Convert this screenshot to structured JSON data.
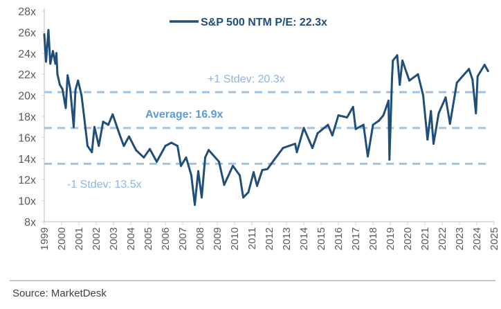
{
  "chart_data": {
    "type": "line",
    "title": "",
    "xlabel": "",
    "ylabel": "",
    "legend": {
      "entry": "S&P 500 NTM P/E: 22.3x",
      "placement": "top-center"
    },
    "xlim": [
      1999,
      2025
    ],
    "x_ticks": [
      "1999",
      "2000",
      "2001",
      "2002",
      "2003",
      "2004",
      "2005",
      "2006",
      "2007",
      "2008",
      "2009",
      "2010",
      "2011",
      "2012",
      "2013",
      "2014",
      "2015",
      "2016",
      "2017",
      "2018",
      "2019",
      "2020",
      "2021",
      "2022",
      "2023",
      "2024",
      "2025"
    ],
    "ylim": [
      8,
      28
    ],
    "y_ticks": [
      "8x",
      "10x",
      "12x",
      "14x",
      "16x",
      "18x",
      "20x",
      "22x",
      "24x",
      "26x",
      "28x"
    ],
    "grid": false,
    "reference_lines": [
      {
        "label": "+1 Stdev: 20.3x",
        "value": 20.3,
        "bold": false
      },
      {
        "label": "Average: 16.9x",
        "value": 16.9,
        "bold": true
      },
      {
        "label": "-1 Stdev: 13.5x",
        "value": 13.5,
        "bold": false
      }
    ],
    "series": [
      {
        "name": "S&P 500 NTM P/E: 22.3x",
        "x": [
          1999.0,
          1999.1,
          1999.24,
          1999.35,
          1999.5,
          1999.64,
          1999.7,
          1999.76,
          1999.9,
          2000.05,
          2000.24,
          2000.35,
          2000.5,
          2000.7,
          2000.8,
          2000.95,
          2001.15,
          2001.3,
          2001.5,
          2001.75,
          2001.9,
          2002.15,
          2002.4,
          2002.7,
          2002.95,
          2003.35,
          2003.6,
          2003.9,
          2004.3,
          2004.75,
          2005.1,
          2005.5,
          2006.0,
          2006.35,
          2006.7,
          2006.9,
          2007.2,
          2007.5,
          2007.7,
          2007.9,
          2008.1,
          2008.3,
          2008.5,
          2009.1,
          2009.4,
          2009.9,
          2010.3,
          2010.5,
          2010.8,
          2011.1,
          2011.3,
          2011.6,
          2011.9,
          2012.3,
          2012.8,
          2013.5,
          2013.6,
          2014.0,
          2014.5,
          2014.8,
          2015.4,
          2015.65,
          2016.0,
          2016.5,
          2016.85,
          2017.0,
          2017.45,
          2017.7,
          2018.0,
          2018.35,
          2018.6,
          2018.9,
          2018.95,
          2019.1,
          2019.15,
          2019.4,
          2019.55,
          2019.7,
          2020.1,
          2020.6,
          2020.9,
          2021.15,
          2021.35,
          2021.5,
          2021.8,
          2022.2,
          2022.45,
          2022.85,
          2023.55,
          2023.75,
          2023.95,
          2024.05,
          2024.45,
          2024.65
        ],
        "values": [
          25.8,
          23.2,
          26.2,
          23.0,
          24.2,
          23.0,
          24.0,
          22.0,
          21.0,
          20.6,
          18.8,
          21.9,
          20.6,
          17.0,
          20.5,
          21.4,
          20.0,
          18.0,
          15.2,
          14.6,
          17.0,
          15.2,
          17.5,
          17.2,
          18.2,
          16.3,
          15.2,
          16.1,
          14.8,
          14.1,
          14.9,
          13.7,
          15.2,
          15.5,
          15.2,
          13.3,
          14.1,
          12.4,
          9.6,
          12.8,
          10.3,
          14.1,
          14.8,
          13.7,
          11.5,
          13.3,
          12.4,
          10.3,
          10.8,
          12.7,
          11.4,
          12.9,
          13.0,
          13.9,
          15.0,
          15.4,
          14.6,
          16.9,
          15.0,
          16.4,
          17.2,
          16.2,
          18.1,
          17.9,
          18.9,
          16.8,
          17.2,
          14.2,
          17.2,
          17.6,
          18.1,
          19.5,
          13.9,
          21.6,
          23.3,
          23.8,
          21.0,
          23.3,
          21.4,
          22.0,
          20.0,
          15.8,
          18.5,
          15.4,
          18.3,
          19.8,
          17.3,
          21.2,
          22.5,
          21.5,
          18.3,
          21.8,
          22.9,
          22.3
        ]
      }
    ],
    "colors": {
      "series": "#1F4E79",
      "reference": "#9DC3E6",
      "reference_text": "#5B9BD5",
      "axis_text": "#595959"
    }
  },
  "footer": {
    "source": "Source: MarketDesk"
  }
}
